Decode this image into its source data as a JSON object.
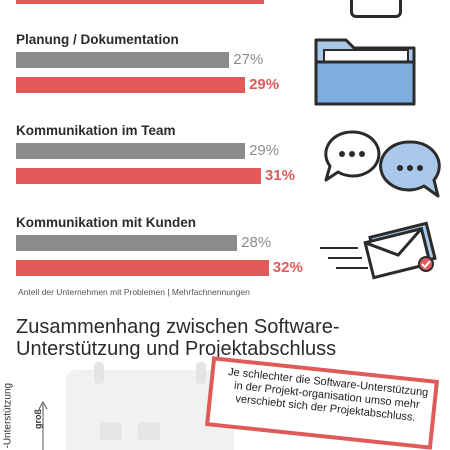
{
  "chart_data": {
    "type": "bar",
    "categories": [
      "Planung / Dokumentation",
      "Kommunikation im Team",
      "Kommunikation mit Kunden"
    ],
    "series": [
      {
        "values": [
          27,
          29,
          28
        ]
      },
      {
        "values": [
          29,
          31,
          32
        ]
      }
    ],
    "value_suffix": "%",
    "series_colors": [
      "#8c8c8c",
      "#e05a5a"
    ]
  },
  "footnote": "Anteil der Unternehmen mit Problemen | Mehrfachnennungen",
  "section_title_line1": "Zusammenhang zwischen Software-",
  "section_title_line2": "Unterstützung und Projektabschluss",
  "note": "Je schlechter die Software-Unterstützung in der Projekt-organisation umso mehr verschiebt sich der Projektabschluss.",
  "y_axis_label": "-Unterstützung",
  "y_axis_marker": "groß",
  "icons": [
    "folder-icon",
    "chat-bubbles-icon",
    "envelope-icon"
  ]
}
